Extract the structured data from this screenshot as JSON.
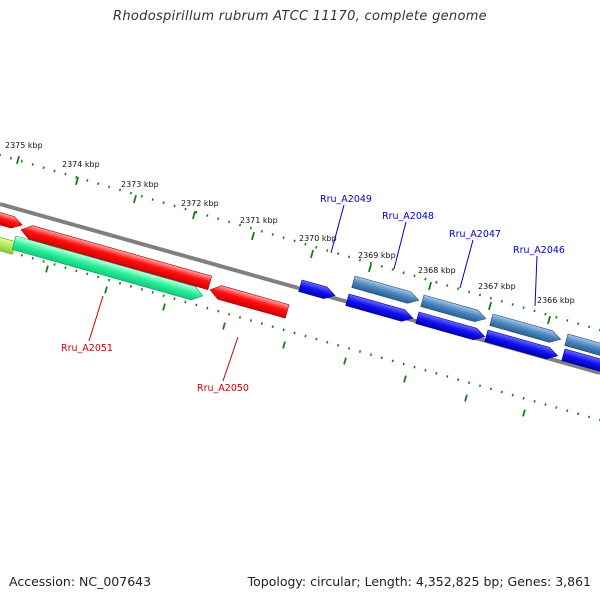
{
  "title": "Rhodospirillum rubrum ATCC 11170, complete genome",
  "footer": {
    "accession": "Accession: NC_007643",
    "summary": "Topology: circular; Length: 4,352,825 bp; Genes: 3,861"
  },
  "colors": {
    "backbone": "#808080",
    "tick": "#1a7a1a",
    "forward_label": "#0000cc",
    "reverse_label": "#cc0000"
  },
  "scale_ticks": [
    {
      "label": "2375 kbp"
    },
    {
      "label": "2374 kbp"
    },
    {
      "label": "2373 kbp"
    },
    {
      "label": "2372 kbp"
    },
    {
      "label": "2371 kbp"
    },
    {
      "label": "2370 kbp"
    },
    {
      "label": "2369 kbp"
    },
    {
      "label": "2368 kbp"
    },
    {
      "label": "2367 kbp"
    },
    {
      "label": "2366 kbp"
    }
  ],
  "gene_labels": [
    {
      "name": "Rru_A2049",
      "strand": "forward"
    },
    {
      "name": "Rru_A2048",
      "strand": "forward"
    },
    {
      "name": "Rru_A2047",
      "strand": "forward"
    },
    {
      "name": "Rru_A2046",
      "strand": "forward"
    },
    {
      "name": "Rru_A2051",
      "strand": "reverse"
    },
    {
      "name": "Rru_A2050",
      "strand": "reverse"
    }
  ]
}
